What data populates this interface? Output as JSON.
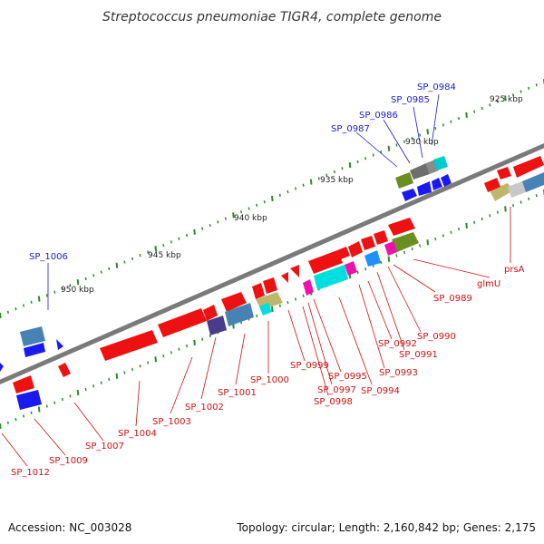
{
  "title": "Streptococcus pneumoniae TIGR4, complete genome",
  "footer": {
    "accession": "Accession: NC_003028",
    "summary": "Topology: circular; Length: 2,160,842 bp; Genes: 2,175"
  },
  "backbone_color": "#7a7a7a",
  "tick_color": "#2e8b2e",
  "ticks": [
    "925 kbp",
    "930 kbp",
    "935 kbp",
    "940 kbp",
    "945 kbp",
    "950 kbp"
  ],
  "forward_labels": [
    "SP_0984",
    "SP_0985",
    "SP_0986",
    "SP_0987",
    "SP_1006"
  ],
  "reverse_labels": [
    "prsA",
    "glmU",
    "SP_0989",
    "SP_0990",
    "SP_0991",
    "SP_0992",
    "SP_0993",
    "SP_0994",
    "SP_0995",
    "SP_0997",
    "SP_0998",
    "SP_0999",
    "SP_1000",
    "SP_1001",
    "SP_1002",
    "SP_1003",
    "SP_1004",
    "SP_1007",
    "SP_1009",
    "SP_1012"
  ],
  "gene_colors": {
    "red": "#ee1111",
    "blue": "#1a1aee",
    "steel": "#4682b4",
    "olive": "#6b8e23",
    "grey": "#6e6e6e",
    "silver": "#c8c8c8",
    "cyan": "#00dede",
    "magenta": "#ee11aa",
    "khaki": "#bdb76b",
    "navy": "#483d8b",
    "skyblue": "#1e90ff"
  }
}
